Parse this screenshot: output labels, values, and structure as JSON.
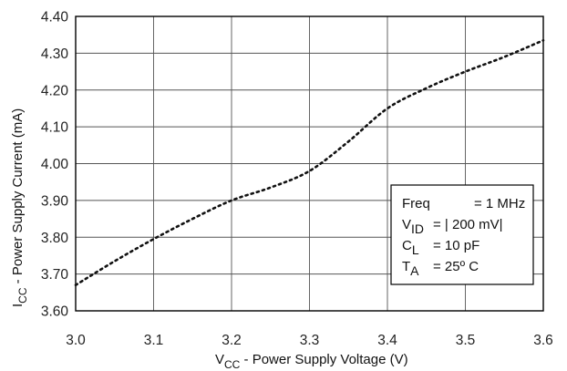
{
  "chart_data": {
    "type": "line",
    "xlabel": {
      "main": "V",
      "sub": "CC",
      "rest": " - Power Supply Voltage (V)"
    },
    "ylabel": {
      "main": "I",
      "sub": "CC",
      "rest": " - Power Supply Current (mA)"
    },
    "xlim": [
      3.0,
      3.6
    ],
    "ylim": [
      3.6,
      4.4
    ],
    "x_ticks": [
      "3.0",
      "3.1",
      "3.2",
      "3.3",
      "3.4",
      "3.5",
      "3.6"
    ],
    "y_ticks": [
      "3.60",
      "3.70",
      "3.80",
      "3.90",
      "4.00",
      "4.10",
      "4.20",
      "4.30",
      "4.40"
    ],
    "grid": true,
    "line_style": "dotted",
    "series": [
      {
        "x": [
          3.0,
          3.05,
          3.1,
          3.15,
          3.2,
          3.25,
          3.3,
          3.35,
          3.4,
          3.45,
          3.5,
          3.55,
          3.6
        ],
        "y": [
          3.67,
          3.735,
          3.795,
          3.85,
          3.9,
          3.935,
          3.98,
          4.06,
          4.15,
          4.205,
          4.25,
          4.29,
          4.335
        ]
      }
    ],
    "legend": {
      "position": "bottom-right",
      "entries": [
        {
          "main": "Freq",
          "sub": "",
          "value": "= 1 MHz"
        },
        {
          "main": "V",
          "sub": "ID",
          "value": "= | 200 mV|"
        },
        {
          "main": "C",
          "sub": "L",
          "value": "= 10 pF"
        },
        {
          "main": "T",
          "sub": "A",
          "value": "= 25º C"
        }
      ]
    }
  }
}
